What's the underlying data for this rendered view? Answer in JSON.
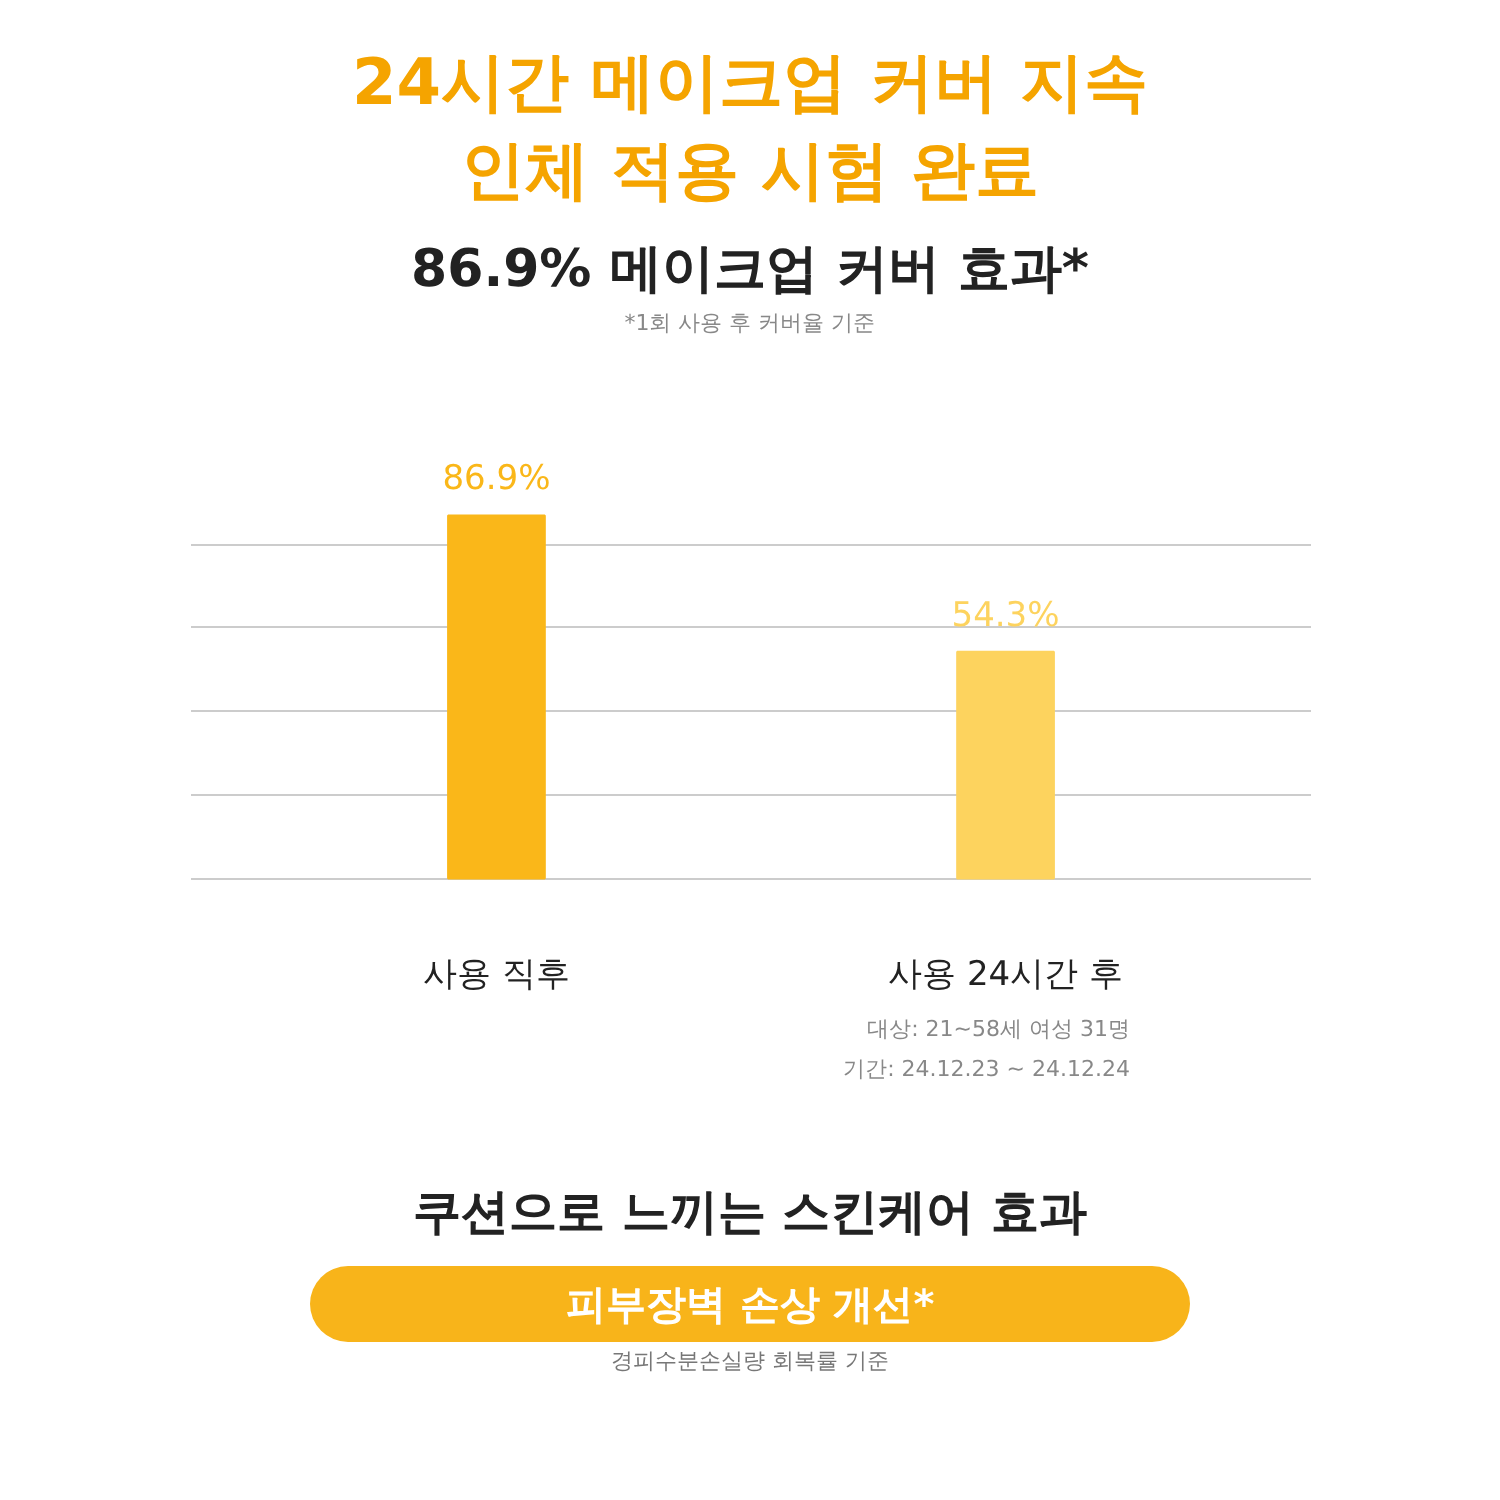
{
  "chart_data": {
    "type": "bar",
    "title": "24시간 메이크업 커버 지속 인체 적용 시험 완료",
    "subtitle": "86.9% 메이크업 커버 효과*",
    "categories": [
      "사용 직후",
      "사용 24시간 후"
    ],
    "values": [
      86.9,
      54.3
    ],
    "colors": [
      "#fab719",
      "#fdd35e"
    ],
    "value_labels": [
      "86.9%",
      "54.3%"
    ],
    "grid": "y",
    "tick_labels": "x",
    "annotations": [
      "*1회 사용 후 커버율 기준",
      "대상: 21~58세 여성 31명",
      "기간: 24.12.23 ~ 24.12.24",
      "쿠션으로 느끼는 스킨케어 효과",
      "피부장벽 손상 개선*",
      "경피수분손실량 회복률 기준"
    ]
  }
}
